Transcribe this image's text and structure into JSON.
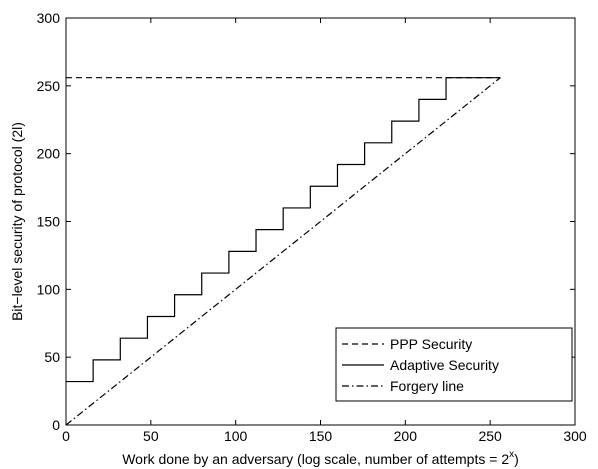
{
  "chart_data": {
    "type": "line",
    "xlabel_main": "Work done by an adversary (log scale, number of attempts = 2",
    "xlabel_sup": "x",
    "xlabel_close": ")",
    "ylabel": "Bit−level security of protocol (2l)",
    "xlim": [
      0,
      300
    ],
    "ylim": [
      0,
      300
    ],
    "xticks": [
      0,
      50,
      100,
      150,
      200,
      250,
      300
    ],
    "yticks": [
      0,
      50,
      100,
      150,
      200,
      250,
      300
    ],
    "grid": false,
    "legend_position": "bottom-right",
    "series": [
      {
        "name": "PPP Security",
        "style": "dashed",
        "x": [
          0,
          256
        ],
        "y": [
          256,
          256
        ]
      },
      {
        "name": "Adaptive Security",
        "style": "solid",
        "x": [
          0,
          16,
          16,
          32,
          32,
          48,
          48,
          64,
          64,
          80,
          80,
          96,
          96,
          112,
          112,
          128,
          128,
          144,
          144,
          160,
          160,
          176,
          176,
          192,
          192,
          208,
          208,
          224,
          224,
          256
        ],
        "y": [
          32,
          32,
          48,
          48,
          64,
          64,
          80,
          80,
          96,
          96,
          112,
          112,
          128,
          128,
          144,
          144,
          160,
          160,
          176,
          176,
          192,
          192,
          208,
          208,
          224,
          224,
          240,
          240,
          256,
          256
        ]
      },
      {
        "name": "Forgery line",
        "style": "dashdot",
        "x": [
          0,
          256
        ],
        "y": [
          0,
          256
        ]
      }
    ]
  }
}
